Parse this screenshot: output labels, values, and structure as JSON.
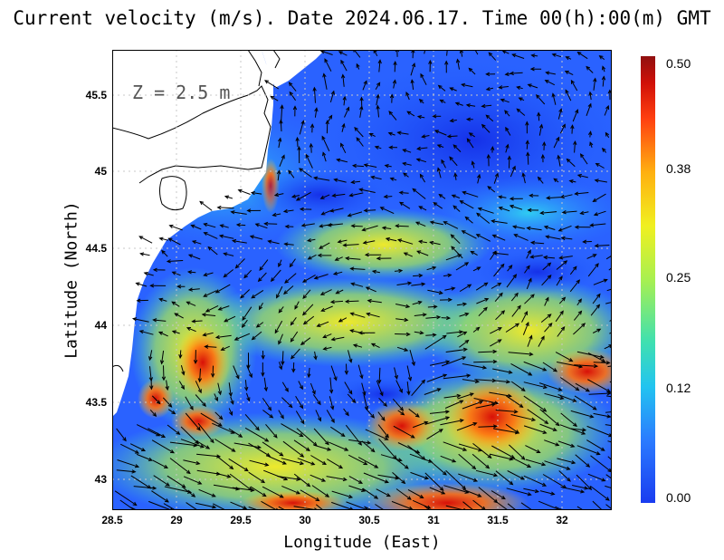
{
  "title": "Current velocity (m/s). Date 2024.06.17. Time 00(h):00(m) GMT",
  "depth_label": "Z = 2.5 m",
  "axes": {
    "xlabel": "Longitude (East)",
    "ylabel": "Latitude (North)",
    "xticks": [
      "28.5",
      "29",
      "29.5",
      "30",
      "30.5",
      "31",
      "31.5",
      "32"
    ],
    "yticks": [
      "45.5",
      "45",
      "44.5",
      "44",
      "43.5",
      "43"
    ]
  },
  "colorbar": {
    "labels": [
      "0.50",
      "0.38",
      "0.25",
      "0.12",
      "0.00"
    ],
    "min": 0.0,
    "max": 0.5
  },
  "colors": {
    "land": "#ffffff",
    "low": "#1a3cf0",
    "high": "#901010"
  }
}
